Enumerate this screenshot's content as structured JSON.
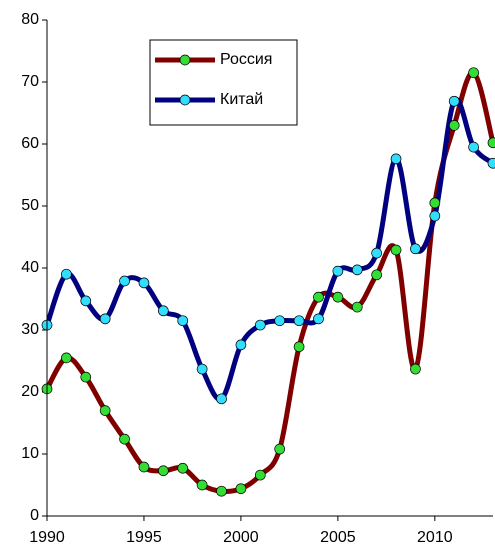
{
  "chart_data": {
    "type": "line",
    "x": [
      1990,
      1991,
      1992,
      1993,
      1994,
      1995,
      1996,
      1997,
      1998,
      1999,
      2000,
      2001,
      2002,
      2003,
      2004,
      2005,
      2006,
      2007,
      2008,
      2009,
      2010,
      2011,
      2012,
      2013
    ],
    "series": [
      {
        "name": "Россия",
        "color": "#800000",
        "marker_color": "#33dd33",
        "values": [
          20.5,
          25.5,
          22.4,
          17,
          12.4,
          7.9,
          7.3,
          7.7,
          5,
          4,
          4.4,
          6.6,
          10.8,
          27.3,
          35.3,
          35.3,
          33.7,
          38.9,
          42.9,
          23.7,
          50.5,
          63,
          71.5,
          60.2
        ]
      },
      {
        "name": "Китай",
        "color": "#000080",
        "marker_color": "#33ddff",
        "values": [
          30.8,
          39,
          34.7,
          31.8,
          37.9,
          37.6,
          33.1,
          31.5,
          23.7,
          18.9,
          27.6,
          30.8,
          31.5,
          31.5,
          31.8,
          39.5,
          39.7,
          42.4,
          57.6,
          43.1,
          48.4,
          66.9,
          59.5,
          56.9
        ]
      }
    ],
    "xlim": [
      1990,
      2013
    ],
    "xticks": [
      1990,
      1995,
      2000,
      2005,
      2010
    ],
    "ylim": [
      0,
      80
    ],
    "yticks": [
      0,
      10,
      20,
      30,
      40,
      50,
      60,
      70,
      80
    ]
  }
}
